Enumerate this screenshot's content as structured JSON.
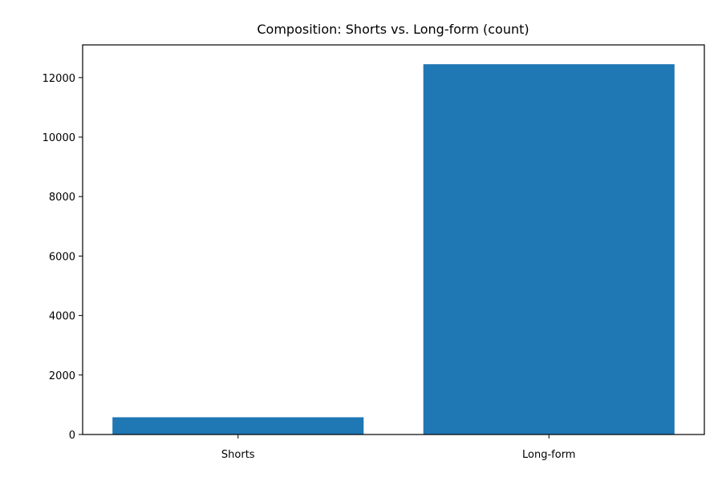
{
  "chart_data": {
    "type": "bar",
    "title": "Composition: Shorts vs. Long-form (count)",
    "xlabel": "",
    "ylabel": "",
    "categories": [
      "Shorts",
      "Long-form"
    ],
    "values": [
      580,
      12450
    ],
    "ylim": [
      0,
      13100
    ],
    "yticks": [
      0,
      2000,
      4000,
      6000,
      8000,
      10000,
      12000
    ],
    "grid": false,
    "bar_color": "#1f77b4"
  }
}
